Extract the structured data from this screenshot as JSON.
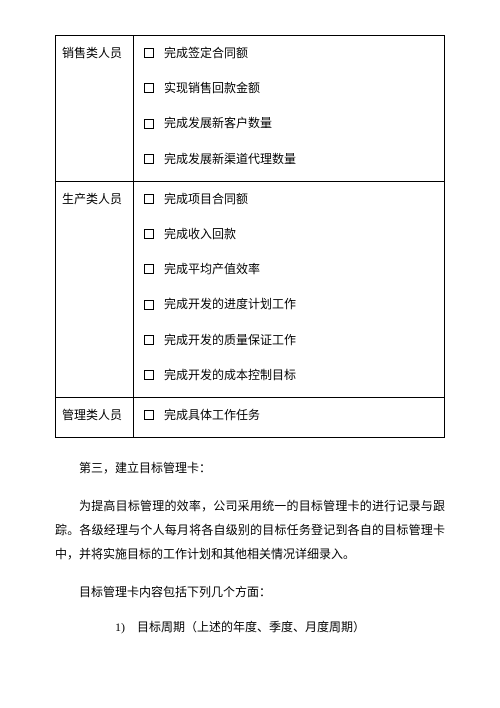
{
  "table": {
    "rows": [
      {
        "category": "销售类人员",
        "items": [
          "完成签定合同额",
          "实现销售回款金额",
          "完成发展新客户数量",
          "完成发展新渠道代理数量"
        ]
      },
      {
        "category": "生产类人员",
        "items": [
          "完成项目合同额",
          "完成收入回款",
          "完成平均产值效率",
          "完成开发的进度计划工作",
          "完成开发的质量保证工作",
          "完成开发的成本控制目标"
        ]
      },
      {
        "category": "管理类人员",
        "items": [
          "完成具体工作任务"
        ]
      }
    ]
  },
  "paragraphs": {
    "p1": "第三，建立目标管理卡：",
    "p2": "为提高目标管理的效率，公司采用统一的目标管理卡的进行记录与跟踪。各级经理与个人每月将各自级别的目标任务登记到各自的目标管理卡中，并将实施目标的工作计划和其他相关情况详细录入。",
    "p3": "目标管理卡内容包括下列几个方面：",
    "li1": "1)　目标周期（上述的年度、季度、月度周期）"
  },
  "styling": {
    "page_bg": "#ffffff",
    "text_color": "#000000",
    "border_color": "#000000",
    "body_fontsize": 12,
    "font_family": "SimSun"
  }
}
